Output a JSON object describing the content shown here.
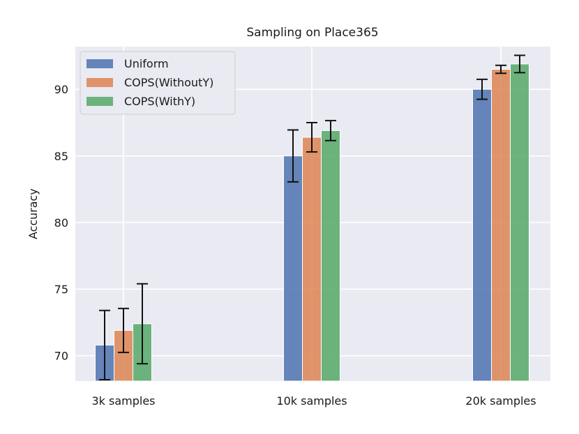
{
  "chart_data": {
    "type": "bar",
    "title": "Sampling on Place365",
    "xlabel": "",
    "ylabel": "Accuracy",
    "categories": [
      "3k samples",
      "10k samples",
      "20k samples"
    ],
    "ylim": [
      68.1,
      93.2
    ],
    "yticks": [
      70,
      75,
      80,
      85,
      90
    ],
    "ytick_labels": [
      "70",
      "75",
      "80",
      "85",
      "90"
    ],
    "grid": true,
    "legend_position": "top-left",
    "series": [
      {
        "name": "Uniform",
        "color": "#4c72b0",
        "values": [
          70.8,
          85.0,
          90.0
        ],
        "errors": [
          2.6,
          1.95,
          0.75
        ]
      },
      {
        "name": "COPS(WithoutY)",
        "color": "#dd8452",
        "values": [
          71.9,
          86.4,
          91.5
        ],
        "errors": [
          1.65,
          1.1,
          0.3
        ]
      },
      {
        "name": "COPS(WithY)",
        "color": "#55a868",
        "values": [
          72.4,
          86.9,
          91.9
        ],
        "errors": [
          3.0,
          0.75,
          0.65
        ]
      }
    ]
  }
}
